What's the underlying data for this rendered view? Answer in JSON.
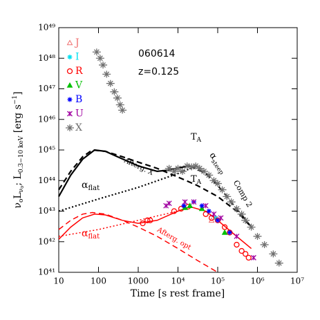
{
  "chart_data": {
    "type": "scatter",
    "log_x": true,
    "log_y": true,
    "x_label": "Time [s rest frame]",
    "y_label": [
      "ν",
      "o",
      "L",
      "ν",
      "o",
      ";  L",
      "0.3−10 keV",
      " [erg s",
      "−1",
      "]"
    ],
    "annotations": [
      "060614",
      "z=0.125"
    ],
    "labels": [
      {
        "base": "T",
        "sub": "A"
      },
      {
        "base": "T",
        "sub": "A"
      },
      {
        "base": "α",
        "sub": "steep"
      },
      "Comp 2",
      "Afterg. X",
      {
        "base": "α",
        "sub": "flat"
      },
      {
        "base": "α",
        "sub": "flat"
      },
      "Afterg. opt"
    ],
    "xlim": [
      10,
      10000000
    ],
    "ylim": [
      1e+41,
      1e+49
    ],
    "xticks": [
      10,
      100,
      1000,
      {
        "value": 10000,
        "label": "10⁴"
      },
      {
        "value": 100000,
        "label": "10⁵"
      },
      {
        "value": 1000000,
        "label": "10⁶"
      },
      {
        "value": 10000000,
        "label": "10⁷"
      }
    ],
    "yticks": [
      {
        "value": 1e+41,
        "label": "10⁴¹"
      },
      {
        "value": 1e+42,
        "label": "10⁴²"
      },
      {
        "value": 1e+43,
        "label": "10⁴³"
      },
      {
        "value": 1e+44,
        "label": "10⁴⁴"
      },
      {
        "value": 1e+45,
        "label": "10⁴⁵"
      },
      {
        "value": 1e+46,
        "label": "10⁴⁶"
      },
      {
        "value": 1e+47,
        "label": "10⁴⁷"
      },
      {
        "value": 1e+48,
        "label": "10⁴⁸"
      },
      {
        "value": 1e+49,
        "label": "10⁴⁹"
      }
    ],
    "series": [
      {
        "name": "J",
        "color": "#f07070",
        "marker": "triangle-open",
        "x": [
          70000
        ],
        "values": [
          5e+42
        ]
      },
      {
        "name": "I",
        "color": "#00e0f0",
        "marker": "star",
        "x": [
          90000
        ],
        "values": [
          6e+42
        ]
      },
      {
        "name": "R",
        "color": "#ff0000",
        "marker": "circle",
        "x": [
          1300,
          1700,
          2000,
          8000,
          12000,
          18000,
          50000,
          70000,
          100000,
          150000,
          200000,
          300000,
          400000,
          500000,
          600000
        ],
        "values": [
          4e+42,
          5e+42,
          5e+42,
          1e+43,
          1.2e+43,
          1.4e+43,
          8e+42,
          6e+42,
          5e+42,
          3e+42,
          2e+42,
          8e+41,
          5e+41,
          4e+41,
          3e+41
        ]
      },
      {
        "name": "V",
        "color": "#00c000",
        "marker": "triangle",
        "x": [
          15000,
          20000,
          40000,
          150000
        ],
        "values": [
          1.3e+43,
          1.5e+43,
          1.2e+43,
          2e+42
        ]
      },
      {
        "name": "B",
        "color": "#0000ff",
        "marker": "star",
        "x": [
          14000,
          25000,
          40000,
          60000,
          100000,
          200000
        ],
        "values": [
          1.5e+43,
          2e+43,
          1.5e+43,
          1e+43,
          5e+42,
          2e+42
        ]
      },
      {
        "name": "U",
        "color": "#a000a0",
        "marker": "asterisk",
        "x": [
          5000,
          6000,
          15000,
          25000,
          50000,
          80000,
          120000,
          300000,
          800000
        ],
        "values": [
          1.5e+43,
          1.8e+43,
          2e+43,
          2e+43,
          1.5e+43,
          8e+42,
          6e+42,
          1.5e+42,
          3e+41
        ]
      },
      {
        "name": "X",
        "color": "#707070",
        "marker": "x",
        "x": [
          90,
          110,
          130,
          160,
          200,
          250,
          300,
          350,
          400,
          6000,
          8000,
          10000,
          13000,
          17000,
          22000,
          28000,
          35000,
          45000,
          60000,
          80000,
          100000,
          130000,
          170000,
          220000,
          300000,
          400000,
          500000,
          700000,
          1000000,
          1500000,
          2500000,
          3500000
        ],
        "values": [
          1.6e+48,
          1e+48,
          6e+47,
          3e+47,
          1.5e+47,
          8e+46,
          5e+46,
          3e+46,
          2e+46,
          2.5e+44,
          2e+44,
          2.5e+44,
          2e+44,
          3e+44,
          2.8e+44,
          3e+44,
          2.5e+44,
          2e+44,
          1.5e+44,
          1e+44,
          8e+43,
          5e+43,
          3e+43,
          2e+43,
          1.2e+43,
          8e+42,
          5e+42,
          3e+42,
          1.5e+42,
          8e+41,
          4e+41,
          2e+41
        ]
      }
    ],
    "curves": [
      {
        "color": "#000000",
        "style": "solid",
        "x": [
          10,
          20,
          40,
          80,
          150,
          300,
          1000,
          3000,
          6000,
          10000,
          20000
        ],
        "values": [
          3e+43,
          1.5e+44,
          5e+44,
          1e+45,
          9e+44,
          6e+44,
          3e+44,
          2e+44,
          2.2e+44,
          2.6e+44,
          3e+44
        ]
      },
      {
        "color": "#000000",
        "style": "dashed",
        "x": [
          10,
          20,
          40,
          70,
          150,
          400,
          1000,
          3000,
          10000,
          30000,
          100000,
          300000,
          700000
        ],
        "values": [
          5e+43,
          2e+44,
          6e+44,
          1e+45,
          9e+44,
          6e+44,
          4e+44,
          2.5e+44,
          1.3e+44,
          7e+43,
          3e+43,
          1e+43,
          3e+42
        ]
      },
      {
        "color": "#000000",
        "style": "dashed",
        "x": [
          20000,
          50000,
          100000,
          300000,
          700000
        ],
        "values": [
          3e+44,
          1.7e+44,
          7e+43,
          1.2e+43,
          3e+42
        ]
      },
      {
        "color": "#000000",
        "style": "dotted",
        "x": [
          10,
          100,
          1000,
          10000,
          30000
        ],
        "values": [
          1e+43,
          2.5e+43,
          6e+43,
          1.7e+44,
          3e+44
        ]
      },
      {
        "color": "#ff0000",
        "style": "solid",
        "x": [
          10,
          20,
          40,
          80,
          150,
          400,
          1000,
          3000,
          10000,
          20000,
          50000,
          100000,
          300000,
          700000
        ],
        "values": [
          1.2e+42,
          3e+42,
          6e+42,
          8e+42,
          7.5e+42,
          5e+42,
          4e+42,
          5e+42,
          1e+43,
          1.4e+43,
          1e+43,
          5e+42,
          1.5e+42,
          6e+41
        ]
      },
      {
        "color": "#ff0000",
        "style": "dashed",
        "x": [
          10,
          20,
          40,
          70,
          150,
          400,
          1000,
          3000,
          10000,
          30000,
          100000
        ],
        "values": [
          2.5e+42,
          5e+42,
          8e+42,
          9e+42,
          8e+42,
          5e+42,
          3e+42,
          1.5e+42,
          6e+41,
          2.5e+41,
          1e+41
        ]
      },
      {
        "color": "#ff0000",
        "style": "dotted",
        "x": [
          10,
          100,
          1000,
          10000
        ],
        "values": [
          1.5e+42,
          2.5e+42,
          5e+42,
          1e+43
        ]
      }
    ]
  }
}
